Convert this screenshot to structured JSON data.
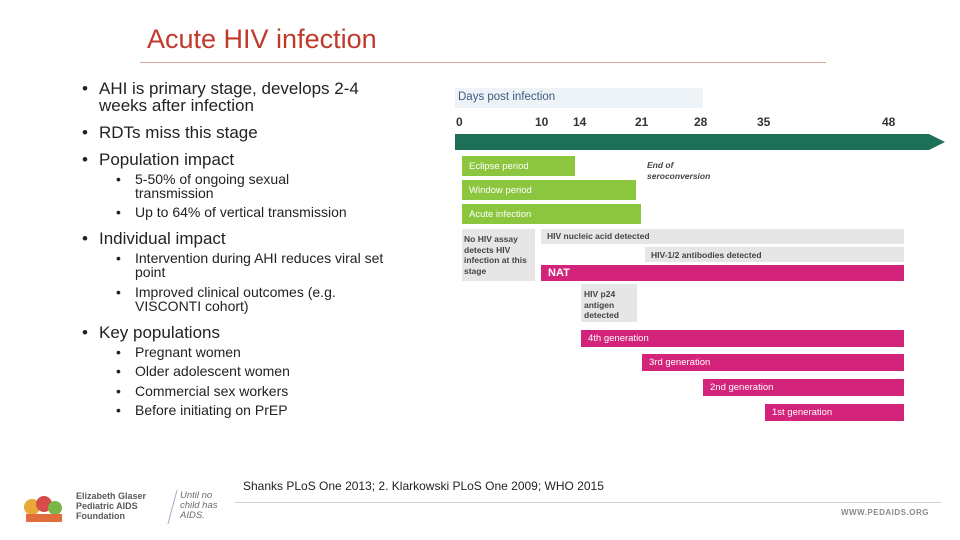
{
  "title": "Acute HIV infection",
  "bullets": {
    "ahi_stage": "AHI is primary stage, develops 2-4 weeks after infection",
    "rdts": "RDTs miss this stage",
    "population": "Population impact",
    "population_sub": [
      "5-50% of ongoing sexual transmission",
      "Up to 64% of vertical transmission"
    ],
    "individual": "Individual impact",
    "individual_sub": [
      "Intervention during AHI reduces viral set point",
      "Improved clinical outcomes (e.g. VISCONTI cohort)"
    ],
    "key_pops": "Key populations",
    "key_pops_sub": [
      "Pregnant women",
      "Older adolescent women",
      "Commercial sex workers",
      "Before initiating on PrEP"
    ]
  },
  "timeline": {
    "header": "Days post infection",
    "ticks": [
      "0",
      "10",
      "14",
      "21",
      "28",
      "35",
      "48"
    ],
    "tick_days": [
      0,
      10,
      14,
      21,
      28,
      35,
      48
    ],
    "periods": {
      "eclipse": "Eclipse period",
      "window": "Window period",
      "acute": "Acute infection",
      "seroconversion": "End of seroconversion"
    },
    "no_detect": "No HIV assay detects HIV infection at this stage",
    "nucleic": "HIV nucleic acid detected",
    "antibodies": "HIV-1/2 antibodies detected",
    "nat": "NAT",
    "p24": "HIV p24 antigen detected",
    "gen4": "4th generation",
    "gen3": "3rd generation",
    "gen2": "2nd generation",
    "gen1": "1st generation",
    "colors": {
      "arrow": "#1e6f57",
      "green": "#8cc63f",
      "gray": "#e6e6e6",
      "magenta": "#d4237a"
    }
  },
  "citation": "Shanks PLoS One 2013; 2. Klarkowski PLoS One 2009; WHO 2015",
  "footer": {
    "org_line1": "Elizabeth Glaser",
    "org_line2": "Pediatric AIDS",
    "org_line3": "Foundation",
    "tagline1": "Until no",
    "tagline2": "child has",
    "tagline3": "AIDS.",
    "url": "WWW.PEDAIDS.ORG"
  }
}
